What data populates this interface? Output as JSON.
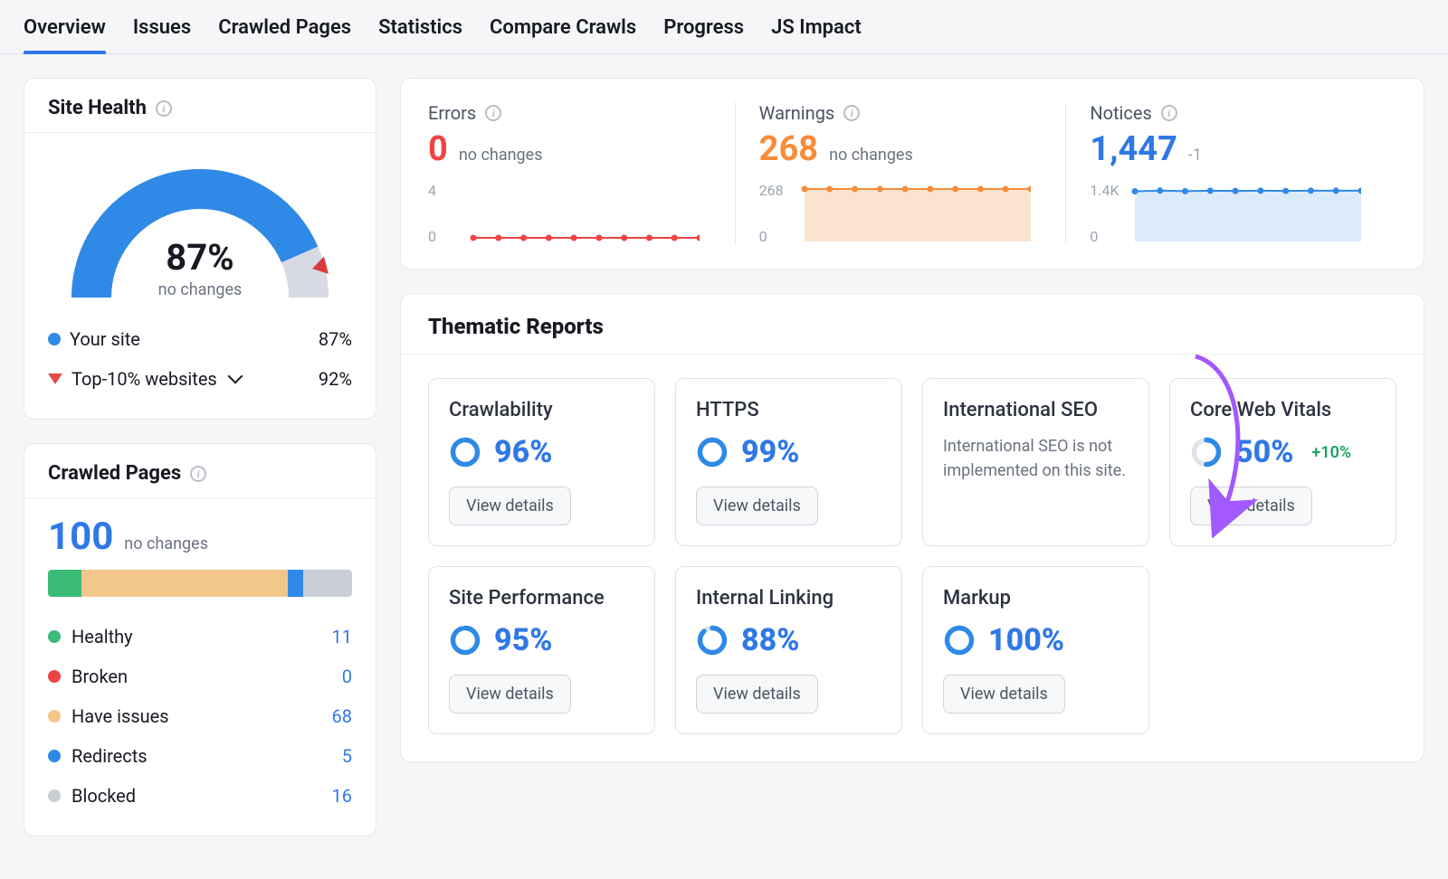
{
  "colors": {
    "blue": "#2f89e6",
    "blue_text": "#2f78e6",
    "orange": "#f58d3c",
    "red": "#f04343",
    "green_dot": "#3abb78",
    "orange_fill": "#fbe4cf",
    "blue_fill": "#dcebfa",
    "grey_seg": "#c9ced7",
    "grey_ring": "#dfe3ea",
    "axis_grey": "#9ca3af",
    "delta_green": "#1aa260",
    "gauge_track": "#d7dae2",
    "marker_red": "#d93b3b",
    "annot_purple": "#a259ff"
  },
  "tabs": [
    {
      "label": "Overview",
      "active": true
    },
    {
      "label": "Issues",
      "active": false
    },
    {
      "label": "Crawled Pages",
      "active": false
    },
    {
      "label": "Statistics",
      "active": false
    },
    {
      "label": "Compare Crawls",
      "active": false
    },
    {
      "label": "Progress",
      "active": false
    },
    {
      "label": "JS Impact",
      "active": false
    }
  ],
  "site_health": {
    "title": "Site Health",
    "percent": 87,
    "percent_label": "87%",
    "sub_label": "no changes",
    "gauge": {
      "value_pct": 87,
      "start_deg": 180,
      "sweep_deg": 180
    },
    "rows": [
      {
        "icon": "dot",
        "color_key": "blue",
        "label": "Your site",
        "value": "87%"
      },
      {
        "icon": "triangle",
        "color_key": "marker_red",
        "label": "Top-10% websites",
        "value": "92%",
        "has_dropdown": true
      }
    ]
  },
  "issues": {
    "cols": [
      {
        "title": "Errors",
        "value": "0",
        "value_color_key": "red",
        "delta": "no changes",
        "axis_top": "4",
        "axis_bot": "0",
        "chart": {
          "type": "dot-line",
          "color_key": "red",
          "fill": null,
          "points": [
            0,
            0,
            0,
            0,
            0,
            0,
            0,
            0,
            0,
            0
          ],
          "ymax": 4
        }
      },
      {
        "title": "Warnings",
        "value": "268",
        "value_color_key": "orange",
        "delta": "no changes",
        "axis_top": "268",
        "axis_bot": "0",
        "chart": {
          "type": "dot-area",
          "color_key": "orange",
          "fill_key": "orange_fill",
          "points": [
            268,
            268,
            268,
            268,
            268,
            268,
            268,
            268,
            268,
            268
          ],
          "ymax": 268
        }
      },
      {
        "title": "Notices",
        "value": "1,447",
        "value_color_key": "blue_text",
        "delta": "-1",
        "delta_color_key": "axis_grey",
        "axis_top": "1.4K",
        "axis_bot": "0",
        "chart": {
          "type": "dot-area",
          "color_key": "blue",
          "fill_key": "blue_fill",
          "points": [
            1430,
            1450,
            1435,
            1448,
            1440,
            1448,
            1442,
            1448,
            1447,
            1447
          ],
          "ymax": 1500
        }
      }
    ]
  },
  "thematic": {
    "title": "Thematic Reports",
    "button_label": "View details",
    "reports": [
      {
        "title": "Crawlability",
        "pct": 96,
        "pct_label": "96%",
        "color_key": "blue"
      },
      {
        "title": "HTTPS",
        "pct": 99,
        "pct_label": "99%",
        "color_key": "blue"
      },
      {
        "title": "International SEO",
        "note": "International SEO is not implemented on this site."
      },
      {
        "title": "Core Web Vitals",
        "pct": 50,
        "pct_label": "50%",
        "color_key": "blue",
        "delta": "+10%",
        "delta_color_key": "delta_green"
      },
      {
        "title": "Site Performance",
        "pct": 95,
        "pct_label": "95%",
        "color_key": "blue"
      },
      {
        "title": "Internal Linking",
        "pct": 88,
        "pct_label": "88%",
        "color_key": "blue"
      },
      {
        "title": "Markup",
        "pct": 100,
        "pct_label": "100%",
        "color_key": "blue"
      }
    ]
  },
  "crawled": {
    "title": "Crawled Pages",
    "total": "100",
    "sub": "no changes",
    "segments": [
      {
        "label": "Healthy",
        "value": 11,
        "color_key": "green_dot"
      },
      {
        "label": "Broken",
        "value": 0,
        "color_key": "red"
      },
      {
        "label": "Have issues",
        "value": 68,
        "color_key": "orange_fill",
        "bar_color": "#f3c68a"
      },
      {
        "label": "Redirects",
        "value": 5,
        "color_key": "blue"
      },
      {
        "label": "Blocked",
        "value": 16,
        "color_key": "grey_seg"
      }
    ]
  }
}
